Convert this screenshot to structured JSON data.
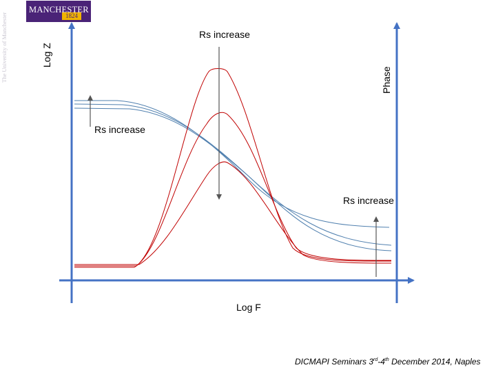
{
  "logo": {
    "word": "MANCHESTER",
    "year": "1824",
    "university_text": "The University of Manchester"
  },
  "axes": {
    "left_label": "Log Z",
    "right_label": "Phase",
    "bottom_label": "Log F"
  },
  "annotations": {
    "top": "Rs increase",
    "middle_left": "Rs increase",
    "right": "Rs increase"
  },
  "footer": {
    "prefix": "DICMAPI Seminars 3",
    "sup1": "rd",
    "mid": "-4",
    "sup2": "th",
    "suffix": " December 2014, Naples"
  },
  "colors": {
    "axis": "#4472c4",
    "impedance_curves": "#4f7fae",
    "phase_curves": "#c00000",
    "logo_bg": "#4a2377"
  }
}
